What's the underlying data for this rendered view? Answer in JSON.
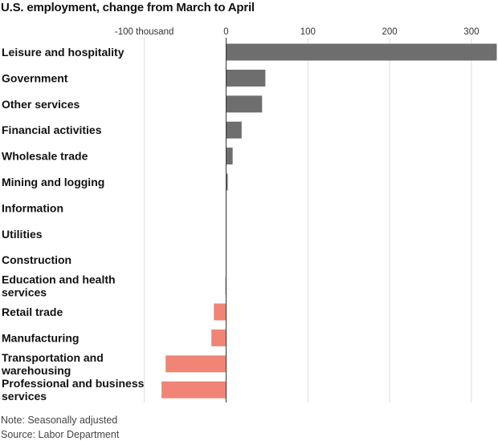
{
  "title": "U.S. employment, change from March to April",
  "note": "Note: Seasonally adjusted",
  "source": "Source: Labor Department",
  "colors": {
    "positive": "#6e6e6e",
    "negative": "#f08575",
    "grid": "#dddddd",
    "zero": "#333333"
  },
  "chart_data": {
    "type": "bar",
    "orientation": "horizontal",
    "title": "U.S. employment, change from March to April",
    "xlim": [
      -100,
      330
    ],
    "ticks": [
      {
        "value": -100,
        "label": "-100 thousand"
      },
      {
        "value": 0,
        "label": "0"
      },
      {
        "value": 100,
        "label": "100"
      },
      {
        "value": 200,
        "label": "200"
      },
      {
        "value": 300,
        "label": "300"
      }
    ],
    "grid": true,
    "categories": [
      [
        "Leisure and hospitality"
      ],
      [
        "Government"
      ],
      [
        "Other services"
      ],
      [
        "Financial activities"
      ],
      [
        "Wholesale trade"
      ],
      [
        "Mining and logging"
      ],
      [
        "Information"
      ],
      [
        "Utilities"
      ],
      [
        "Construction"
      ],
      [
        "Education and health",
        "services"
      ],
      [
        "Retail trade"
      ],
      [
        "Manufacturing"
      ],
      [
        "Transportation and",
        "warehousing"
      ],
      [
        "Professional and business",
        "services"
      ]
    ],
    "values": [
      331,
      48,
      44,
      19,
      8,
      2,
      0,
      0,
      0,
      -1,
      -15,
      -18,
      -74,
      -79
    ]
  }
}
